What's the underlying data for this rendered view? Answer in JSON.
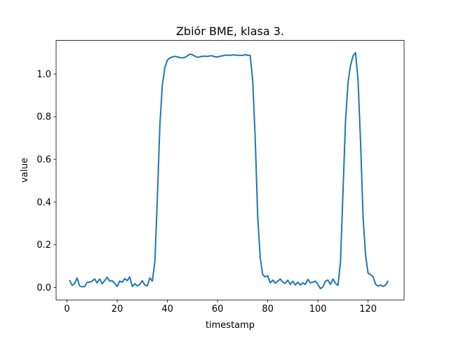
{
  "chart_data": {
    "type": "line",
    "title": "Zbiór BME, klasa 3.",
    "xlabel": "timestamp",
    "ylabel": "value",
    "xlim": [
      -4.35,
      134.35
    ],
    "ylim": [
      -0.058,
      1.157
    ],
    "xticks": [
      0,
      20,
      40,
      60,
      80,
      100,
      120
    ],
    "yticks": [
      0.0,
      0.2,
      0.4,
      0.6,
      0.8,
      1.0
    ],
    "ytick_labels": [
      "0.0",
      "0.2",
      "0.4",
      "0.6",
      "0.8",
      "1.0"
    ],
    "grid": false,
    "line_color": "#1f77b4",
    "series": [
      {
        "x": [
          1,
          2,
          3,
          4,
          5,
          6,
          7,
          8,
          9,
          10,
          11,
          12,
          13,
          14,
          15,
          16,
          17,
          18,
          19,
          20,
          21,
          22,
          23,
          24,
          25,
          26,
          27,
          28,
          29,
          30,
          31,
          32,
          33,
          34,
          35,
          36,
          37,
          38,
          39,
          40,
          41,
          42,
          43,
          44,
          45,
          46,
          47,
          48,
          49,
          50,
          51,
          52,
          53,
          54,
          55,
          56,
          57,
          58,
          59,
          60,
          61,
          62,
          63,
          64,
          65,
          66,
          67,
          68,
          69,
          70,
          71,
          72,
          73,
          74,
          75,
          76,
          77,
          78,
          79,
          80,
          81,
          82,
          83,
          84,
          85,
          86,
          87,
          88,
          89,
          90,
          91,
          92,
          93,
          94,
          95,
          96,
          97,
          98,
          99,
          100,
          101,
          102,
          103,
          104,
          105,
          106,
          107,
          108,
          109,
          110,
          111,
          112,
          113,
          114,
          115,
          116,
          117,
          118,
          119,
          120,
          121,
          122,
          123,
          124,
          125,
          126,
          127,
          128
        ],
        "values": [
          0.035,
          0.01,
          0.018,
          0.045,
          0.008,
          0.003,
          0.005,
          0.025,
          0.025,
          0.03,
          0.04,
          0.022,
          0.04,
          0.018,
          0.032,
          0.048,
          0.03,
          0.032,
          0.02,
          0.005,
          0.03,
          0.025,
          0.042,
          0.032,
          0.05,
          0.005,
          0.018,
          0.008,
          0.015,
          0.032,
          0.012,
          0.008,
          0.045,
          0.03,
          0.12,
          0.42,
          0.76,
          0.95,
          1.03,
          1.065,
          1.075,
          1.08,
          1.082,
          1.08,
          1.077,
          1.075,
          1.078,
          1.085,
          1.093,
          1.09,
          1.083,
          1.078,
          1.08,
          1.083,
          1.083,
          1.082,
          1.085,
          1.085,
          1.08,
          1.08,
          1.083,
          1.085,
          1.088,
          1.088,
          1.087,
          1.09,
          1.088,
          1.088,
          1.087,
          1.087,
          1.09,
          1.088,
          1.087,
          0.97,
          0.7,
          0.33,
          0.14,
          0.06,
          0.05,
          0.055,
          0.022,
          0.035,
          0.02,
          0.03,
          0.04,
          0.025,
          0.02,
          0.035,
          0.015,
          0.03,
          0.012,
          0.025,
          0.012,
          0.022,
          0.015,
          0.038,
          0.022,
          0.025,
          0.03,
          0.015,
          -0.005,
          0.003,
          0.03,
          0.035,
          0.015,
          0.04,
          0.02,
          0.01,
          0.12,
          0.45,
          0.78,
          0.96,
          1.04,
          1.085,
          1.1,
          0.97,
          0.68,
          0.33,
          0.15,
          0.068,
          0.06,
          0.05,
          0.015,
          0.007,
          0.012,
          0.005,
          0.012,
          0.032
        ]
      }
    ]
  }
}
